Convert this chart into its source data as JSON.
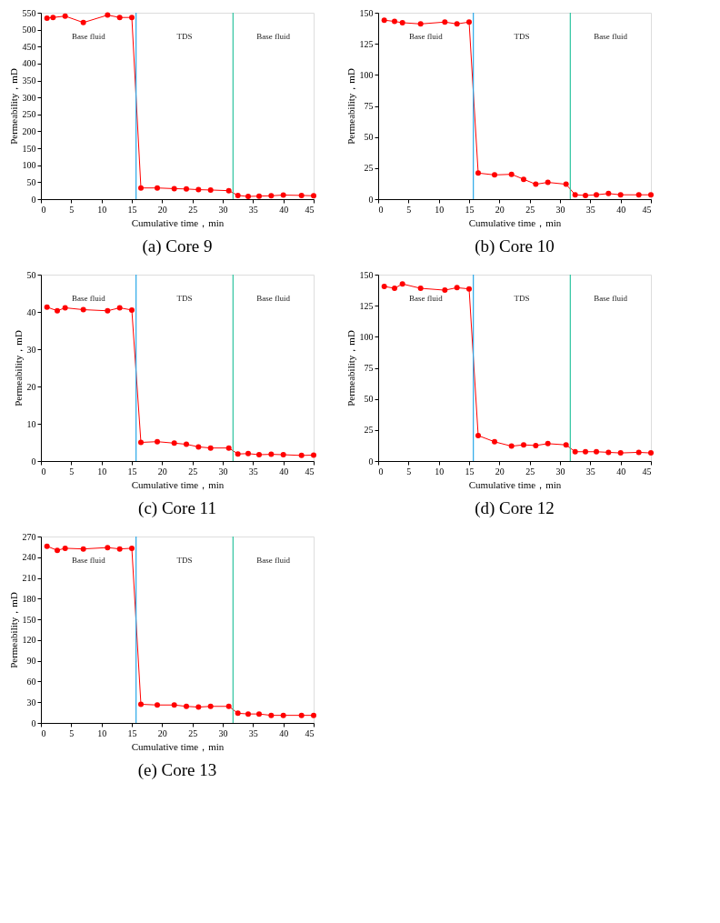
{
  "chart_data": [
    {
      "type": "line",
      "title": "(a) Core 9",
      "xlabel": "Cumulative time，min",
      "ylabel": "Permeability，mD",
      "marker": "circle",
      "line_style": "solid",
      "grid": false,
      "xlim": [
        0,
        45
      ],
      "xticks": [
        0,
        5,
        10,
        15,
        20,
        25,
        30,
        35,
        40,
        45
      ],
      "ylim": [
        0,
        550
      ],
      "yticks": [
        0,
        50,
        100,
        150,
        200,
        250,
        300,
        350,
        400,
        450,
        500,
        550
      ],
      "series": [
        {
          "color": "#ff0000",
          "x": [
            1,
            2,
            4,
            7,
            11,
            13,
            15,
            16.5,
            19.2,
            22,
            24,
            26,
            28,
            31,
            32.5,
            34.2,
            36,
            38,
            40,
            43,
            45
          ],
          "values": [
            534,
            536,
            540,
            521,
            543,
            536,
            536,
            33,
            33,
            31,
            30,
            28,
            27,
            25,
            11,
            8,
            9,
            10,
            12,
            11,
            10
          ]
        }
      ],
      "ref_lines": [
        {
          "axis": "x",
          "value": 15.7,
          "color": "#29a8e8"
        },
        {
          "axis": "x",
          "value": 31.7,
          "color": "#2ec4a0"
        }
      ],
      "annotations": [
        "Base fluid",
        "TDS",
        "Base fluid"
      ]
    },
    {
      "type": "line",
      "title": "(b) Core 10",
      "xlabel": "Cumulative time，min",
      "ylabel": "Permeability，mD",
      "marker": "circle",
      "line_style": "solid",
      "grid": false,
      "xlim": [
        0,
        45
      ],
      "xticks": [
        0,
        5,
        10,
        15,
        20,
        25,
        30,
        35,
        40,
        45
      ],
      "ylim": [
        0,
        150
      ],
      "yticks": [
        0,
        25,
        50,
        75,
        100,
        125,
        150
      ],
      "series": [
        {
          "color": "#ff0000",
          "x": [
            1,
            2.7,
            4,
            7,
            11,
            13,
            15,
            16.5,
            19.2,
            22,
            24,
            26,
            28,
            31,
            32.5,
            34.2,
            36,
            38,
            40,
            43,
            45
          ],
          "values": [
            144,
            143,
            142,
            141,
            142.5,
            141,
            142.5,
            21,
            19.5,
            20,
            16,
            12,
            13.5,
            12,
            3.5,
            3,
            3.5,
            4.5,
            3.5,
            3.5,
            3.5
          ]
        }
      ],
      "ref_lines": [
        {
          "axis": "x",
          "value": 15.7,
          "color": "#29a8e8"
        },
        {
          "axis": "x",
          "value": 31.7,
          "color": "#2ec4a0"
        }
      ],
      "annotations": [
        "Base fluid",
        "TDS",
        "Base fluid"
      ]
    },
    {
      "type": "line",
      "title": "(c) Core 11",
      "xlabel": "Cumulative time，min",
      "ylabel": "Permeability，mD",
      "marker": "circle",
      "line_style": "solid",
      "grid": false,
      "xlim": [
        0,
        45
      ],
      "xticks": [
        0,
        5,
        10,
        15,
        20,
        25,
        30,
        35,
        40,
        45
      ],
      "ylim": [
        0,
        50
      ],
      "yticks": [
        0,
        10,
        20,
        30,
        40,
        50
      ],
      "series": [
        {
          "color": "#ff0000",
          "x": [
            1,
            2.7,
            4,
            7,
            11,
            13,
            15,
            16.5,
            19.2,
            22,
            24,
            26,
            28,
            31,
            32.5,
            34.2,
            36,
            38,
            40,
            43,
            45
          ],
          "values": [
            41.3,
            40.3,
            41.1,
            40.6,
            40.3,
            41.1,
            40.5,
            5,
            5.2,
            4.8,
            4.5,
            3.8,
            3.5,
            3.5,
            1.9,
            2,
            1.7,
            1.8,
            1.7,
            1.5,
            1.6
          ]
        }
      ],
      "ref_lines": [
        {
          "axis": "x",
          "value": 15.7,
          "color": "#29a8e8"
        },
        {
          "axis": "x",
          "value": 31.7,
          "color": "#2ec4a0"
        }
      ],
      "annotations": [
        "Base fluid",
        "TDS",
        "Base fluid"
      ]
    },
    {
      "type": "line",
      "title": "(d) Core 12",
      "xlabel": "Cumulative time，min",
      "ylabel": "Permeability，mD",
      "marker": "circle",
      "line_style": "solid",
      "grid": false,
      "xlim": [
        0,
        45
      ],
      "xticks": [
        0,
        5,
        10,
        15,
        20,
        25,
        30,
        35,
        40,
        45
      ],
      "ylim": [
        0,
        150
      ],
      "yticks": [
        0,
        25,
        50,
        75,
        100,
        125,
        150
      ],
      "series": [
        {
          "color": "#ff0000",
          "x": [
            1,
            2.7,
            4,
            7,
            11,
            13,
            15,
            16.5,
            19.2,
            22,
            24,
            26,
            28,
            31,
            32.5,
            34.2,
            36,
            38,
            40,
            43,
            45
          ],
          "values": [
            140.5,
            139,
            142.5,
            139,
            137.5,
            139.5,
            138.5,
            20.5,
            15.5,
            12,
            13,
            12.5,
            14,
            13,
            7.5,
            7.5,
            7.5,
            7,
            6.5,
            7,
            6.5
          ]
        }
      ],
      "ref_lines": [
        {
          "axis": "x",
          "value": 15.7,
          "color": "#29a8e8"
        },
        {
          "axis": "x",
          "value": 31.7,
          "color": "#2ec4a0"
        }
      ],
      "annotations": [
        "Base fluid",
        "TDS",
        "Base fluid"
      ]
    },
    {
      "type": "line",
      "title": "(e) Core 13",
      "xlabel": "Cumulative time，min",
      "ylabel": "Permeability，mD",
      "marker": "circle",
      "line_style": "solid",
      "grid": false,
      "xlim": [
        0,
        45
      ],
      "xticks": [
        0,
        5,
        10,
        15,
        20,
        25,
        30,
        35,
        40,
        45
      ],
      "ylim": [
        0,
        270
      ],
      "yticks": [
        0,
        30,
        60,
        90,
        120,
        150,
        180,
        210,
        240,
        270
      ],
      "series": [
        {
          "color": "#ff0000",
          "x": [
            1,
            2.7,
            4,
            7,
            11,
            13,
            15,
            16.5,
            19.2,
            22,
            24,
            26,
            28,
            31,
            32.5,
            34.2,
            36,
            38,
            40,
            43,
            45
          ],
          "values": [
            256,
            250,
            253,
            252,
            254,
            252,
            253,
            27,
            26,
            26,
            24,
            23,
            24,
            24,
            14,
            13,
            13,
            11,
            11,
            11,
            11
          ]
        }
      ],
      "ref_lines": [
        {
          "axis": "x",
          "value": 15.7,
          "color": "#29a8e8"
        },
        {
          "axis": "x",
          "value": 31.7,
          "color": "#2ec4a0"
        }
      ],
      "annotations": [
        "Base fluid",
        "TDS",
        "Base fluid"
      ]
    }
  ]
}
